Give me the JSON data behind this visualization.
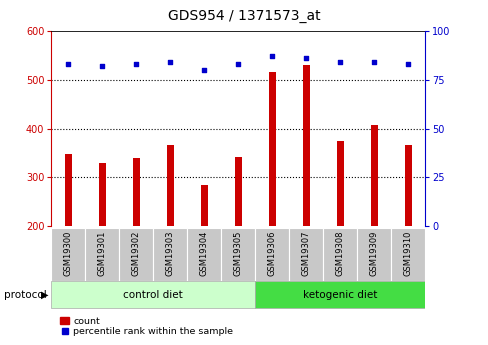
{
  "title": "GDS954 / 1371573_at",
  "samples": [
    "GSM19300",
    "GSM19301",
    "GSM19302",
    "GSM19303",
    "GSM19304",
    "GSM19305",
    "GSM19306",
    "GSM19307",
    "GSM19308",
    "GSM19309",
    "GSM19310"
  ],
  "counts": [
    347,
    329,
    340,
    366,
    285,
    341,
    515,
    531,
    374,
    407,
    366
  ],
  "percentile_ranks": [
    83,
    82,
    83,
    84,
    80,
    83,
    87,
    86,
    84,
    84,
    83
  ],
  "ylim_left": [
    200,
    600
  ],
  "ylim_right": [
    0,
    100
  ],
  "yticks_left": [
    200,
    300,
    400,
    500,
    600
  ],
  "yticks_right": [
    0,
    25,
    50,
    75,
    100
  ],
  "bar_color": "#cc0000",
  "dot_color": "#0000cc",
  "control_diet_label": "control diet",
  "ketogenic_diet_label": "ketogenic diet",
  "protocol_label": "protocol",
  "legend_count_label": "count",
  "legend_percentile_label": "percentile rank within the sample",
  "title_fontsize": 10,
  "tick_fontsize": 7,
  "label_fontsize": 7.5,
  "tick_color_left": "#cc0000",
  "tick_color_right": "#0000cc",
  "n_control": 6,
  "n_ketogenic": 5,
  "control_color": "#ccffcc",
  "ketogenic_color": "#44dd44"
}
